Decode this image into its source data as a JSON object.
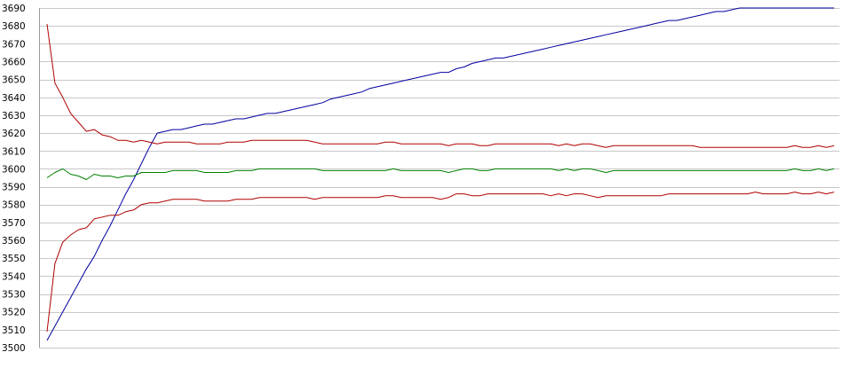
{
  "chart_data": {
    "type": "line",
    "title": "",
    "xlabel": "",
    "ylabel": "",
    "ylim": [
      3500,
      3690
    ],
    "y_ticks": [
      3500,
      3510,
      3520,
      3530,
      3540,
      3550,
      3560,
      3570,
      3580,
      3590,
      3600,
      3610,
      3620,
      3630,
      3640,
      3650,
      3660,
      3670,
      3680,
      3690
    ],
    "x_count": 101,
    "grid": true,
    "legend": "none",
    "colors": {
      "grid": "#c8c8c8",
      "axis": "#9a9a9a",
      "background": "#ffffff"
    },
    "series": [
      {
        "color": "#0000a0",
        "values": [
          3504,
          3512,
          3520,
          3528,
          3536,
          3544,
          3551,
          3560,
          3568,
          3577,
          3586,
          3594,
          3603,
          3612,
          3620,
          3621,
          3622,
          3622,
          3623,
          3624,
          3625,
          3625,
          3626,
          3627,
          3628,
          3628,
          3629,
          3630,
          3631,
          3631,
          3632,
          3633,
          3634,
          3635,
          3636,
          3637,
          3639,
          3640,
          3641,
          3642,
          3643,
          3645,
          3646,
          3647,
          3648,
          3649,
          3650,
          3651,
          3652,
          3653,
          3654,
          3654,
          3656,
          3657,
          3659,
          3660,
          3661,
          3662,
          3662,
          3663,
          3664,
          3665,
          3666,
          3667,
          3668,
          3669,
          3670,
          3671,
          3672,
          3673,
          3674,
          3675,
          3676,
          3677,
          3678,
          3679,
          3680,
          3681,
          3682,
          3683,
          3683,
          3684,
          3685,
          3686,
          3687,
          3688,
          3688,
          3689,
          3690,
          3690,
          3690,
          3690,
          3690,
          3690,
          3690,
          3690,
          3690,
          3690,
          3690,
          3690,
          3690
        ]
      },
      {
        "color": "#b00000",
        "values": [
          3681,
          3648,
          3640,
          3631,
          3626,
          3621,
          3622,
          3619,
          3618,
          3616,
          3616,
          3615,
          3616,
          3615,
          3614,
          3615,
          3615,
          3615,
          3615,
          3614,
          3614,
          3614,
          3614,
          3615,
          3615,
          3615,
          3616,
          3616,
          3616,
          3616,
          3616,
          3616,
          3616,
          3616,
          3615,
          3614,
          3614,
          3614,
          3614,
          3614,
          3614,
          3614,
          3614,
          3615,
          3615,
          3614,
          3614,
          3614,
          3614,
          3614,
          3614,
          3613,
          3614,
          3614,
          3614,
          3613,
          3613,
          3614,
          3614,
          3614,
          3614,
          3614,
          3614,
          3614,
          3614,
          3613,
          3614,
          3613,
          3614,
          3614,
          3613,
          3612,
          3613,
          3613,
          3613,
          3613,
          3613,
          3613,
          3613,
          3613,
          3613,
          3613,
          3613,
          3612,
          3612,
          3612,
          3612,
          3612,
          3612,
          3612,
          3612,
          3612,
          3612,
          3612,
          3612,
          3613,
          3612,
          3612,
          3613,
          3612,
          3613
        ]
      },
      {
        "color": "#008000",
        "values": [
          3595,
          3598,
          3600,
          3597,
          3596,
          3594,
          3597,
          3596,
          3596,
          3595,
          3596,
          3596,
          3598,
          3598,
          3598,
          3598,
          3599,
          3599,
          3599,
          3599,
          3598,
          3598,
          3598,
          3598,
          3599,
          3599,
          3599,
          3600,
          3600,
          3600,
          3600,
          3600,
          3600,
          3600,
          3600,
          3599,
          3599,
          3599,
          3599,
          3599,
          3599,
          3599,
          3599,
          3599,
          3600,
          3599,
          3599,
          3599,
          3599,
          3599,
          3599,
          3598,
          3599,
          3600,
          3600,
          3599,
          3599,
          3600,
          3600,
          3600,
          3600,
          3600,
          3600,
          3600,
          3600,
          3599,
          3600,
          3599,
          3600,
          3600,
          3599,
          3598,
          3599,
          3599,
          3599,
          3599,
          3599,
          3599,
          3599,
          3599,
          3599,
          3599,
          3599,
          3599,
          3599,
          3599,
          3599,
          3599,
          3599,
          3599,
          3599,
          3599,
          3599,
          3599,
          3599,
          3600,
          3599,
          3599,
          3600,
          3599,
          3600
        ]
      },
      {
        "color": "#b00000",
        "values": [
          3509,
          3547,
          3559,
          3563,
          3566,
          3567,
          3572,
          3573,
          3574,
          3574,
          3576,
          3577,
          3580,
          3581,
          3581,
          3582,
          3583,
          3583,
          3583,
          3583,
          3582,
          3582,
          3582,
          3582,
          3583,
          3583,
          3583,
          3584,
          3584,
          3584,
          3584,
          3584,
          3584,
          3584,
          3583,
          3584,
          3584,
          3584,
          3584,
          3584,
          3584,
          3584,
          3584,
          3585,
          3585,
          3584,
          3584,
          3584,
          3584,
          3584,
          3583,
          3584,
          3586,
          3586,
          3585,
          3585,
          3586,
          3586,
          3586,
          3586,
          3586,
          3586,
          3586,
          3586,
          3585,
          3586,
          3585,
          3586,
          3586,
          3585,
          3584,
          3585,
          3585,
          3585,
          3585,
          3585,
          3585,
          3585,
          3585,
          3586,
          3586,
          3586,
          3586,
          3586,
          3586,
          3586,
          3586,
          3586,
          3586,
          3586,
          3587,
          3586,
          3586,
          3586,
          3586,
          3587,
          3586,
          3586,
          3587,
          3586,
          3587
        ]
      }
    ]
  }
}
